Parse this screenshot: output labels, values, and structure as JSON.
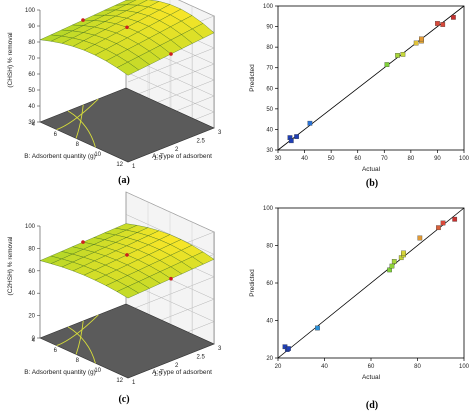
{
  "chart_data": [
    {
      "id": "a",
      "type": "surface3d",
      "caption": "(a)",
      "zlabel": "(CHSH) % removal",
      "xlabel": "A: Type of adsorbent",
      "ylabel": "B: Adsorbent quantity (g)",
      "zlim": [
        30,
        100
      ],
      "xlim": [
        1,
        3
      ],
      "ylim": [
        4,
        12
      ],
      "z_ticks": [
        "30",
        "40",
        "50",
        "60",
        "70",
        "80",
        "90",
        "100"
      ],
      "x_ticks": [
        "1",
        "1.5",
        "2",
        "2.5",
        "3"
      ],
      "y_ticks": [
        "4",
        "6",
        "8",
        "10",
        "12"
      ],
      "surface": {
        "z_min": 70,
        "z_max": 95
      }
    },
    {
      "id": "b",
      "type": "scatter",
      "caption": "(b)",
      "xlabel": "Actual",
      "ylabel": "Predicted",
      "xlim": [
        30,
        100
      ],
      "ylim": [
        30,
        100
      ],
      "x_ticks": [
        "30",
        "40",
        "50",
        "60",
        "70",
        "80",
        "90",
        "100"
      ],
      "y_ticks": [
        "30",
        "40",
        "50",
        "60",
        "70",
        "80",
        "90",
        "100"
      ],
      "points": [
        {
          "x": 34.5,
          "y": 36,
          "color": "#1f3fb5"
        },
        {
          "x": 35,
          "y": 34.5,
          "color": "#1f3fb5"
        },
        {
          "x": 37,
          "y": 36.5,
          "color": "#1f3fb5"
        },
        {
          "x": 42,
          "y": 43,
          "color": "#2a72d6"
        },
        {
          "x": 71,
          "y": 71.5,
          "color": "#7fd03a"
        },
        {
          "x": 75,
          "y": 76,
          "color": "#a8d63a"
        },
        {
          "x": 77,
          "y": 76.5,
          "color": "#c5d83a"
        },
        {
          "x": 82,
          "y": 82,
          "color": "#e0c23a"
        },
        {
          "x": 84,
          "y": 83,
          "color": "#e0a83a"
        },
        {
          "x": 84,
          "y": 84,
          "color": "#e39a35"
        },
        {
          "x": 90,
          "y": 91.5,
          "color": "#d9493a"
        },
        {
          "x": 92,
          "y": 91,
          "color": "#d9493a"
        },
        {
          "x": 96,
          "y": 94.5,
          "color": "#c8302e"
        }
      ]
    },
    {
      "id": "c",
      "type": "surface3d",
      "caption": "(c)",
      "zlabel": "(C2HSH) % removal",
      "xlabel": "A: Type of adsorbent",
      "ylabel": "B: Adsorbent quantity (g)",
      "zlim": [
        0,
        100
      ],
      "xlim": [
        1,
        3
      ],
      "ylim": [
        4,
        12
      ],
      "z_ticks": [
        "0",
        "20",
        "40",
        "60",
        "80",
        "100"
      ],
      "x_ticks": [
        "1",
        "1.5",
        "2",
        "2.5",
        "3"
      ],
      "y_ticks": [
        "4",
        "6",
        "8",
        "10",
        "12"
      ],
      "surface": {
        "z_min": 60,
        "z_max": 80
      }
    },
    {
      "id": "d",
      "type": "scatter",
      "caption": "(d)",
      "xlabel": "Actual",
      "ylabel": "Predicted",
      "xlim": [
        20,
        100
      ],
      "ylim": [
        20,
        100
      ],
      "x_ticks": [
        "20",
        "40",
        "60",
        "80",
        "100"
      ],
      "y_ticks": [
        "20",
        "40",
        "60",
        "80",
        "100"
      ],
      "points": [
        {
          "x": 23,
          "y": 26,
          "color": "#1f3fb5"
        },
        {
          "x": 24,
          "y": 24.5,
          "color": "#1f3fb5"
        },
        {
          "x": 24.5,
          "y": 25,
          "color": "#1f3fb5"
        },
        {
          "x": 37,
          "y": 36,
          "color": "#2a8fd6"
        },
        {
          "x": 68,
          "y": 67,
          "color": "#7fd03a"
        },
        {
          "x": 69,
          "y": 69,
          "color": "#8fd23a"
        },
        {
          "x": 70,
          "y": 71.5,
          "color": "#a8d63a"
        },
        {
          "x": 73,
          "y": 73.5,
          "color": "#c5d83a"
        },
        {
          "x": 74,
          "y": 75,
          "color": "#cfd83a"
        },
        {
          "x": 74,
          "y": 76,
          "color": "#d6d43a"
        },
        {
          "x": 81,
          "y": 84,
          "color": "#e09a35"
        },
        {
          "x": 89,
          "y": 89.5,
          "color": "#d9603a"
        },
        {
          "x": 91,
          "y": 92,
          "color": "#d9493a"
        },
        {
          "x": 96,
          "y": 94,
          "color": "#c8302e"
        }
      ]
    }
  ]
}
